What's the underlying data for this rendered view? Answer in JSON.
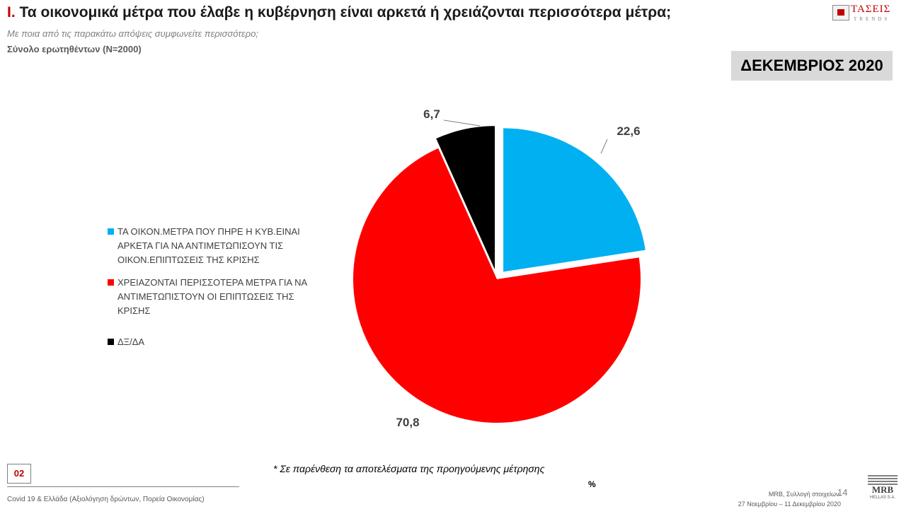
{
  "header": {
    "number": "I.",
    "title": "Τα οικονομικά μέτρα που έλαβε η κυβέρνηση είναι αρκετά ή χρειάζονται περισσότερα μέτρα;",
    "subtitle": "Με ποια από τις παρακάτω απόψεις συμφωνείτε περισσότερο;",
    "base": "Σύνολο ερωτηθέντων (N=2000)",
    "period": "ΔΕΚΕΜΒΡΙΟΣ 2020"
  },
  "logo": {
    "brand": "ΤΑΣΕΙΣ",
    "sub": "TRENDS"
  },
  "chart_data": {
    "type": "pie",
    "slices": [
      {
        "label": "ΤΑ ΟΙΚΟΝ.ΜΕΤΡΑ ΠΟΥ ΠΗΡΕ Η ΚΥΒ.ΕΙΝΑΙ ΑΡΚΕΤΑ ΓΙΑ ΝΑ ΑΝΤΙΜΕΤΩΠΙΣΟΥΝ ΤΙΣ ΟΙΚΟΝ.ΕΠΙΠΤΩΣΕΙΣ ΤΗΣ ΚΡΙΣΗΣ",
        "value": 22.6,
        "value_label": "22,6",
        "color": "#00b0f0"
      },
      {
        "label": "ΧΡΕΙΑΖΟΝΤΑΙ ΠΕΡΙΣΣΟΤΕΡΑ ΜΕΤΡΑ ΓΙΑ ΝΑ ΑΝΤΙΜΕΤΩΠΙΣΤΟΥΝ ΟΙ ΕΠΙΠΤΩΣΕΙΣ ΤΗΣ ΚΡΙΣΗΣ",
        "value": 70.8,
        "value_label": "70,8",
        "color": "#ff0000"
      },
      {
        "label": "ΔΞ/ΔΑ",
        "value": 6.7,
        "value_label": "6,7",
        "color": "#000000"
      }
    ],
    "legend_position": "left",
    "unit": "%"
  },
  "footer": {
    "note": "* Σε παρένθεση τα αποτελέσματα της προηγούμενης μέτρησης",
    "unit": "%",
    "page_code": "02",
    "survey": "Covid 19 & Ελλάδα (Αξιολόγηση δρώντων, Πορεία Οικονομίας)",
    "source_line1": "MRB, Συλλογή στοιχείων:",
    "source_line2": "27 Νοεμβρίου – 11 Δεκεμβρίου 2020",
    "page_number": "14",
    "mrb_name": "MRB",
    "mrb_sub": "HELLAS S.A."
  }
}
